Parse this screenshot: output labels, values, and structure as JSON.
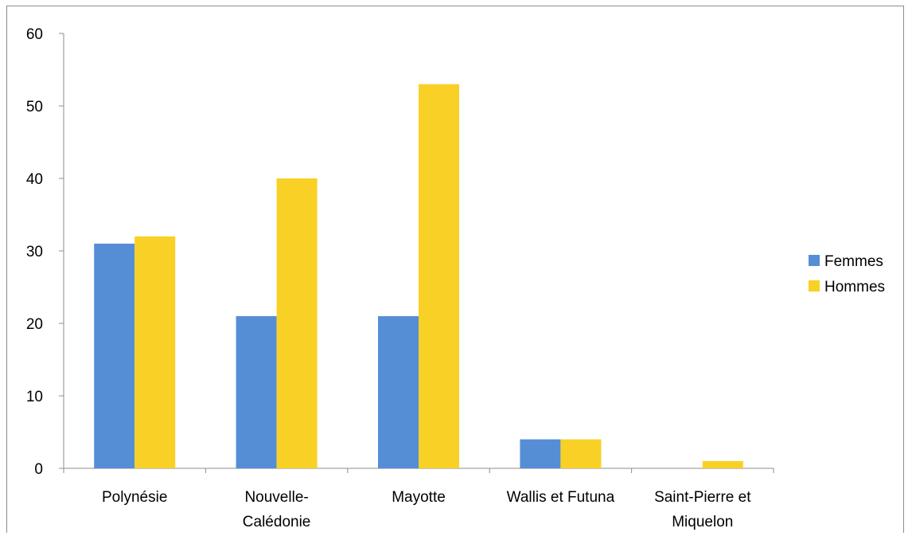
{
  "chart_data": {
    "type": "bar",
    "title": "",
    "xlabel": "",
    "ylabel": "",
    "categories": [
      [
        "Polynésie"
      ],
      [
        "Nouvelle-",
        "Calédonie"
      ],
      [
        "Mayotte"
      ],
      [
        "Wallis et Futuna"
      ],
      [
        "Saint-Pierre et",
        "Miquelon"
      ]
    ],
    "series": [
      {
        "name": "Femmes",
        "values": [
          31,
          21,
          21,
          4,
          0
        ],
        "color": "#558ED5"
      },
      {
        "name": "Hommes",
        "values": [
          32,
          40,
          53,
          4,
          1
        ],
        "color": "#F9D025"
      }
    ],
    "ylim": [
      0,
      60
    ],
    "yticks": [
      0,
      10,
      20,
      30,
      40,
      50,
      60
    ],
    "grid": false,
    "legend_position": "right"
  }
}
